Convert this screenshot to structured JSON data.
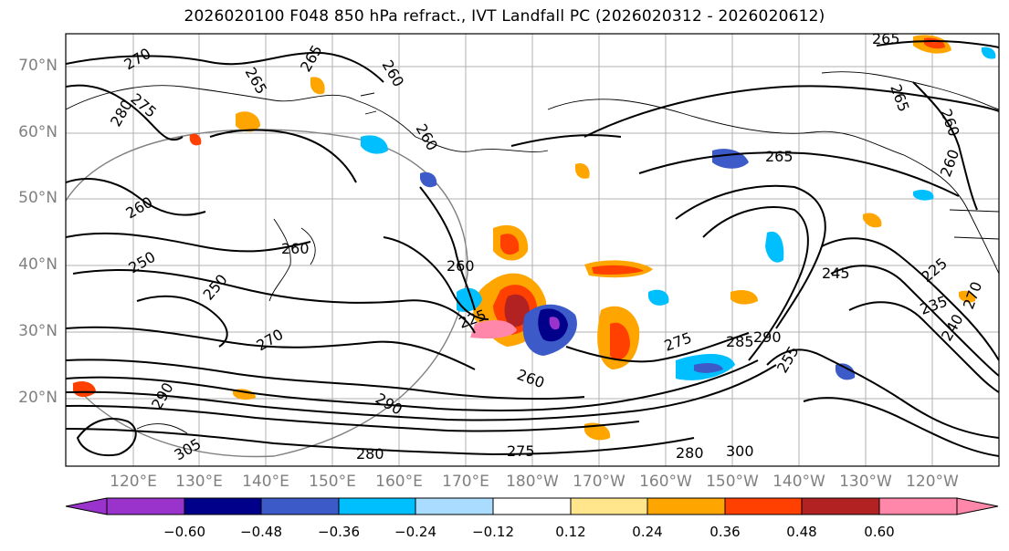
{
  "title": "2026020100 F048 850 hPa refract., IVT Landfall PC (2026020312 - 2026020612)",
  "lat_labels": [
    "70°N",
    "60°N",
    "50°N",
    "40°N",
    "30°N",
    "20°N"
  ],
  "lon_labels": [
    "120°E",
    "130°E",
    "140°E",
    "150°E",
    "160°E",
    "170°E",
    "180°W",
    "170°W",
    "160°W",
    "150°W",
    "140°W",
    "130°W",
    "120°W"
  ],
  "contour_labels": [
    "270",
    "265",
    "265",
    "260",
    "275",
    "280",
    "265",
    "260",
    "265",
    "265",
    "260",
    "260",
    "260",
    "250",
    "260",
    "270",
    "275",
    "290",
    "285",
    "290",
    "300",
    "255",
    "260",
    "225",
    "290",
    "305",
    "280",
    "280",
    "275",
    "260",
    "250",
    "235",
    "245",
    "240",
    "225",
    "270"
  ],
  "colorbar": {
    "ticks": [
      "−0.60",
      "−0.48",
      "−0.36",
      "−0.24",
      "−0.12",
      "0.12",
      "0.24",
      "0.36",
      "0.48",
      "0.60"
    ],
    "colors": [
      "#9933cc",
      "#00008b",
      "#3c5ac8",
      "#00bfff",
      "#aadcff",
      "#ffffff",
      "#ffe68c",
      "#ffa500",
      "#ff4000",
      "#b22222",
      "#ff88aa"
    ]
  }
}
